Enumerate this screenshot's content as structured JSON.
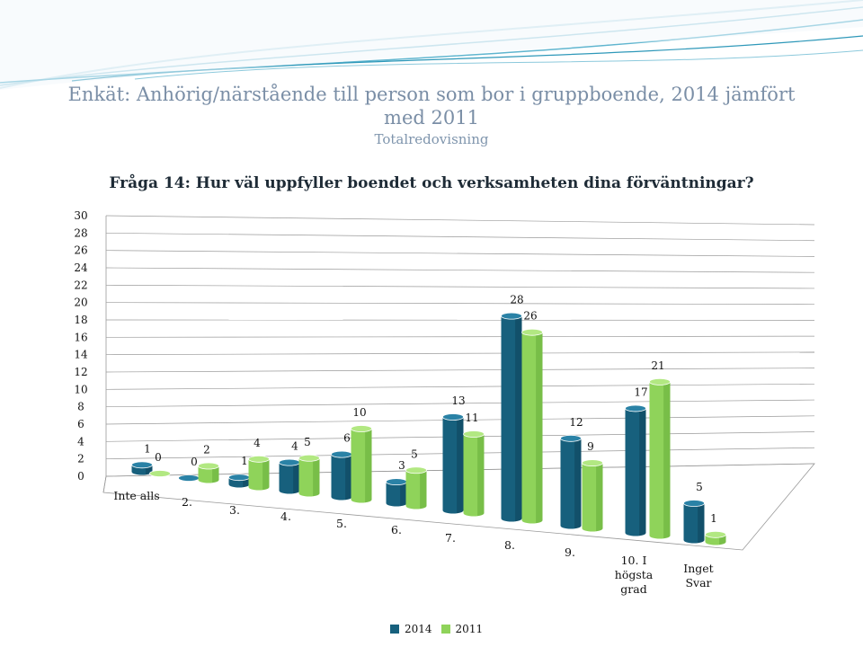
{
  "header": {
    "title": "Enkät: Anhörig/närstående till person som bor i gruppboende, 2014 jämfört med 2011",
    "subtitle": "Totalredovisning"
  },
  "question": "Fråga 14: Hur väl uppfyller boendet och verksamheten dina förväntningar?",
  "colors": {
    "series_2014": "#17607d",
    "series_2011": "#8fd35a",
    "title": "#7a8ea6",
    "gridline": "#9a9a9a"
  },
  "chart_data": {
    "type": "bar",
    "categories": [
      "Inte alls",
      "2.",
      "3.",
      "4.",
      "5.",
      "6.",
      "7.",
      "8.",
      "9.",
      "10. I högsta grad",
      "Inget Svar"
    ],
    "series": [
      {
        "name": "2014",
        "values": [
          1,
          0,
          1,
          4,
          6,
          3,
          13,
          28,
          12,
          17,
          5
        ]
      },
      {
        "name": "2011",
        "values": [
          0,
          2,
          4,
          5,
          10,
          5,
          11,
          26,
          9,
          21,
          1
        ]
      }
    ],
    "value_labels": {
      "2014": [
        "1",
        "0",
        "1",
        "4",
        "6",
        "3",
        "13",
        "28",
        "12",
        "17",
        "5"
      ],
      "2011": [
        "0",
        "2",
        "4",
        "5",
        "10",
        "5",
        "11",
        "26",
        "9",
        "21",
        "1"
      ]
    },
    "yticks": [
      "0",
      "2",
      "4",
      "6",
      "8",
      "10",
      "12",
      "14",
      "16",
      "18",
      "20",
      "22",
      "24",
      "26",
      "28",
      "30"
    ],
    "ylim": [
      0,
      30
    ],
    "grid": true,
    "legend_position": "bottom",
    "style": "3d-cylinder"
  }
}
